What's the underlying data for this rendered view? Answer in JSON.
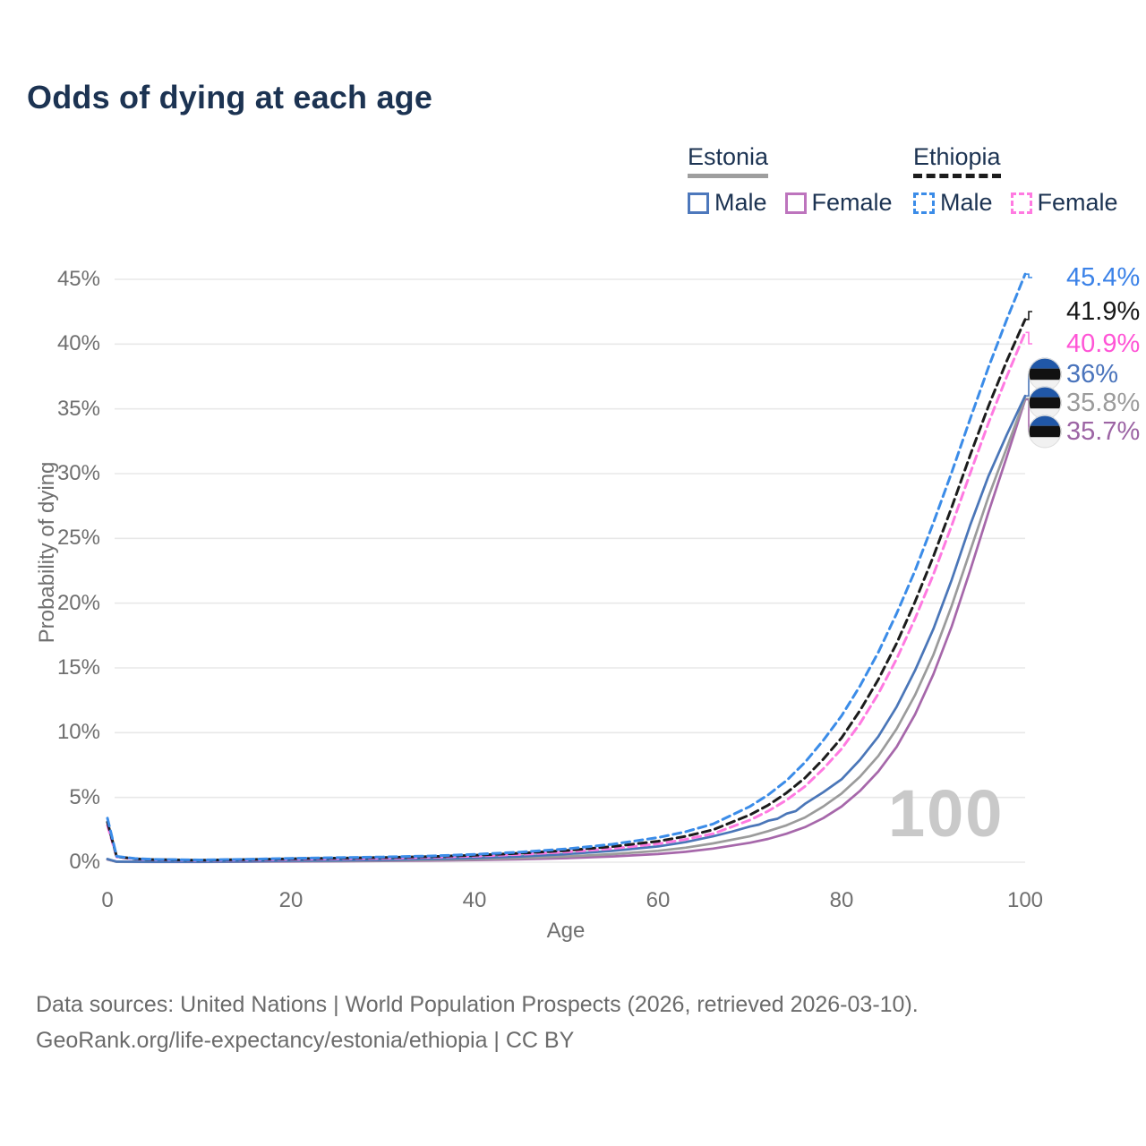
{
  "title": "Odds of dying at each age",
  "legend": {
    "estonia": {
      "title": "Estonia",
      "male": "Male",
      "female": "Female"
    },
    "ethiopia": {
      "title": "Ethiopia",
      "male": "Male",
      "female": "Female"
    }
  },
  "watermark": "100",
  "footer": {
    "line1": "Data sources: United Nations | World Population Prospects (2026, retrieved 2026-03-10).",
    "line2": "GeoRank.org/life-expectancy/estonia/ethiopia | CC BY"
  },
  "chart_data": {
    "type": "line",
    "title": "Odds of dying at each age",
    "xlabel": "Age",
    "ylabel": "Probability of dying",
    "xlim": [
      0,
      100
    ],
    "ylim": [
      0,
      45
    ],
    "x_ticks": [
      "0",
      "20",
      "40",
      "60",
      "80",
      "100"
    ],
    "y_ticks": [
      "0%",
      "5%",
      "10%",
      "15%",
      "20%",
      "25%",
      "30%",
      "35%",
      "40%",
      "45%"
    ],
    "grid": true,
    "legend_position": "top-right",
    "series": [
      {
        "id": "ethiopia-male",
        "name": "Ethiopia Male",
        "country": "Ethiopia",
        "sex": "male",
        "style": "dashed",
        "color": "#3b8ce8",
        "end_label": "45.4%",
        "end_label_color": "#3b82e8",
        "flag": "ethiopia",
        "points": [
          [
            0,
            3.4
          ],
          [
            1,
            0.45
          ],
          [
            3,
            0.28
          ],
          [
            5,
            0.22
          ],
          [
            10,
            0.17
          ],
          [
            15,
            0.22
          ],
          [
            20,
            0.3
          ],
          [
            25,
            0.35
          ],
          [
            30,
            0.4
          ],
          [
            35,
            0.48
          ],
          [
            40,
            0.6
          ],
          [
            45,
            0.78
          ],
          [
            50,
            1.02
          ],
          [
            55,
            1.38
          ],
          [
            60,
            1.9
          ],
          [
            63,
            2.35
          ],
          [
            66,
            2.95
          ],
          [
            70,
            4.3
          ],
          [
            72,
            5.2
          ],
          [
            74,
            6.3
          ],
          [
            76,
            7.7
          ],
          [
            78,
            9.4
          ],
          [
            80,
            11.3
          ],
          [
            82,
            13.6
          ],
          [
            84,
            16.2
          ],
          [
            86,
            19.2
          ],
          [
            88,
            22.5
          ],
          [
            90,
            26.2
          ],
          [
            92,
            30.1
          ],
          [
            94,
            34.2
          ],
          [
            96,
            38.2
          ],
          [
            98,
            41.9
          ],
          [
            100,
            45.4
          ]
        ]
      },
      {
        "id": "ethiopia-both",
        "name": "Ethiopia Both sexes",
        "country": "Ethiopia",
        "sex": "both",
        "style": "dashed",
        "color": "#1c1c1c",
        "end_label": "41.9%",
        "end_label_color": "#171717",
        "flag": "ethiopia",
        "points": [
          [
            0,
            3.1
          ],
          [
            1,
            0.43
          ],
          [
            3,
            0.26
          ],
          [
            5,
            0.2
          ],
          [
            10,
            0.15
          ],
          [
            15,
            0.2
          ],
          [
            20,
            0.26
          ],
          [
            25,
            0.31
          ],
          [
            30,
            0.36
          ],
          [
            35,
            0.43
          ],
          [
            40,
            0.53
          ],
          [
            45,
            0.69
          ],
          [
            50,
            0.9
          ],
          [
            55,
            1.2
          ],
          [
            60,
            1.62
          ],
          [
            63,
            2.0
          ],
          [
            66,
            2.5
          ],
          [
            70,
            3.65
          ],
          [
            72,
            4.4
          ],
          [
            74,
            5.35
          ],
          [
            76,
            6.5
          ],
          [
            78,
            7.95
          ],
          [
            80,
            9.6
          ],
          [
            82,
            11.7
          ],
          [
            84,
            14.1
          ],
          [
            86,
            16.9
          ],
          [
            88,
            20.1
          ],
          [
            90,
            23.6
          ],
          [
            92,
            27.4
          ],
          [
            94,
            31.4
          ],
          [
            96,
            35.2
          ],
          [
            98,
            38.7
          ],
          [
            100,
            41.9
          ]
        ]
      },
      {
        "id": "ethiopia-female",
        "name": "Ethiopia Female",
        "country": "Ethiopia",
        "sex": "female",
        "style": "dashed",
        "color": "#ff7ae1",
        "end_label": "40.9%",
        "end_label_color": "#ff55d6",
        "flag": "ethiopia",
        "points": [
          [
            0,
            2.85
          ],
          [
            1,
            0.4
          ],
          [
            3,
            0.24
          ],
          [
            5,
            0.19
          ],
          [
            10,
            0.14
          ],
          [
            15,
            0.17
          ],
          [
            20,
            0.22
          ],
          [
            25,
            0.26
          ],
          [
            30,
            0.3
          ],
          [
            35,
            0.37
          ],
          [
            40,
            0.46
          ],
          [
            45,
            0.6
          ],
          [
            50,
            0.79
          ],
          [
            55,
            1.05
          ],
          [
            60,
            1.42
          ],
          [
            63,
            1.76
          ],
          [
            66,
            2.2
          ],
          [
            70,
            3.25
          ],
          [
            72,
            3.95
          ],
          [
            74,
            4.8
          ],
          [
            76,
            5.85
          ],
          [
            78,
            7.2
          ],
          [
            80,
            8.75
          ],
          [
            82,
            10.7
          ],
          [
            84,
            13.0
          ],
          [
            86,
            15.7
          ],
          [
            88,
            18.8
          ],
          [
            90,
            22.2
          ],
          [
            92,
            26.0
          ],
          [
            94,
            30.0
          ],
          [
            96,
            33.9
          ],
          [
            98,
            37.5
          ],
          [
            100,
            40.9
          ]
        ]
      },
      {
        "id": "estonia-male",
        "name": "Estonia Male",
        "country": "Estonia",
        "sex": "male",
        "style": "solid",
        "color": "#4a76b8",
        "end_label": "36%",
        "end_label_color": "#4a74bc",
        "flag": "estonia",
        "points": [
          [
            0,
            0.25
          ],
          [
            1,
            0.04
          ],
          [
            5,
            0.025
          ],
          [
            10,
            0.025
          ],
          [
            15,
            0.06
          ],
          [
            20,
            0.11
          ],
          [
            25,
            0.14
          ],
          [
            30,
            0.18
          ],
          [
            35,
            0.24
          ],
          [
            40,
            0.32
          ],
          [
            45,
            0.44
          ],
          [
            50,
            0.62
          ],
          [
            55,
            0.87
          ],
          [
            60,
            1.22
          ],
          [
            63,
            1.55
          ],
          [
            66,
            2.0
          ],
          [
            68,
            2.35
          ],
          [
            70,
            2.75
          ],
          [
            71,
            2.9
          ],
          [
            72,
            3.2
          ],
          [
            73,
            3.35
          ],
          [
            74,
            3.75
          ],
          [
            75,
            3.95
          ],
          [
            76,
            4.5
          ],
          [
            78,
            5.4
          ],
          [
            80,
            6.4
          ],
          [
            82,
            7.9
          ],
          [
            84,
            9.7
          ],
          [
            86,
            12.0
          ],
          [
            88,
            14.8
          ],
          [
            90,
            18.0
          ],
          [
            92,
            21.8
          ],
          [
            94,
            26.0
          ],
          [
            96,
            29.8
          ],
          [
            98,
            33.0
          ],
          [
            100,
            36.0
          ]
        ]
      },
      {
        "id": "estonia-both",
        "name": "Estonia Both sexes",
        "country": "Estonia",
        "sex": "both",
        "style": "solid",
        "color": "#9b9b9b",
        "end_label": "35.8%",
        "end_label_color": "#9b9b9b",
        "flag": "estonia",
        "points": [
          [
            0,
            0.22
          ],
          [
            1,
            0.03
          ],
          [
            5,
            0.02
          ],
          [
            10,
            0.02
          ],
          [
            15,
            0.045
          ],
          [
            20,
            0.08
          ],
          [
            25,
            0.1
          ],
          [
            30,
            0.13
          ],
          [
            35,
            0.17
          ],
          [
            40,
            0.22
          ],
          [
            45,
            0.31
          ],
          [
            50,
            0.44
          ],
          [
            55,
            0.62
          ],
          [
            60,
            0.88
          ],
          [
            63,
            1.12
          ],
          [
            66,
            1.45
          ],
          [
            70,
            2.0
          ],
          [
            72,
            2.4
          ],
          [
            74,
            2.85
          ],
          [
            76,
            3.45
          ],
          [
            78,
            4.3
          ],
          [
            80,
            5.3
          ],
          [
            82,
            6.6
          ],
          [
            84,
            8.2
          ],
          [
            86,
            10.3
          ],
          [
            88,
            12.9
          ],
          [
            90,
            16.0
          ],
          [
            92,
            19.8
          ],
          [
            94,
            24.0
          ],
          [
            96,
            28.2
          ],
          [
            98,
            32.0
          ],
          [
            100,
            35.8
          ]
        ]
      },
      {
        "id": "estonia-female",
        "name": "Estonia Female",
        "country": "Estonia",
        "sex": "female",
        "style": "solid",
        "color": "#a667aa",
        "end_label": "35.7%",
        "end_label_color": "#9c64a4",
        "flag": "estonia",
        "points": [
          [
            0,
            0.2
          ],
          [
            1,
            0.025
          ],
          [
            5,
            0.015
          ],
          [
            10,
            0.015
          ],
          [
            15,
            0.035
          ],
          [
            20,
            0.05
          ],
          [
            25,
            0.07
          ],
          [
            30,
            0.09
          ],
          [
            35,
            0.12
          ],
          [
            40,
            0.16
          ],
          [
            45,
            0.22
          ],
          [
            50,
            0.31
          ],
          [
            55,
            0.44
          ],
          [
            60,
            0.63
          ],
          [
            63,
            0.8
          ],
          [
            66,
            1.05
          ],
          [
            70,
            1.5
          ],
          [
            72,
            1.8
          ],
          [
            74,
            2.2
          ],
          [
            76,
            2.7
          ],
          [
            78,
            3.4
          ],
          [
            80,
            4.3
          ],
          [
            82,
            5.5
          ],
          [
            84,
            7.0
          ],
          [
            86,
            8.9
          ],
          [
            88,
            11.4
          ],
          [
            90,
            14.5
          ],
          [
            92,
            18.2
          ],
          [
            94,
            22.5
          ],
          [
            96,
            27.0
          ],
          [
            98,
            31.3
          ],
          [
            100,
            35.7
          ]
        ]
      }
    ]
  }
}
